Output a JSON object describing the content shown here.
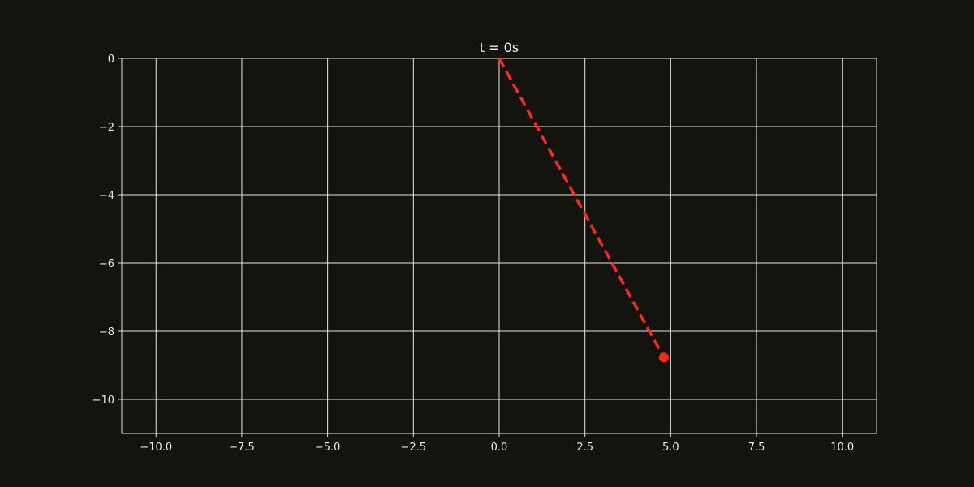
{
  "chart_data": {
    "type": "line",
    "title": "t = 0s",
    "xlabel": "",
    "ylabel": "",
    "xlim": [
      -11,
      11
    ],
    "ylim": [
      -11,
      0
    ],
    "x_ticks": [
      -10.0,
      -7.5,
      -5.0,
      -2.5,
      0.0,
      2.5,
      5.0,
      7.5,
      10.0
    ],
    "x_tick_labels": [
      "−10.0",
      "−7.5",
      "−5.0",
      "−2.5",
      "0.0",
      "2.5",
      "5.0",
      "7.5",
      "10.0"
    ],
    "y_ticks": [
      0,
      -2,
      -4,
      -6,
      -8,
      -10
    ],
    "y_tick_labels": [
      "0",
      "−2",
      "−4",
      "−6",
      "−8",
      "−10"
    ],
    "grid": true,
    "series": [
      {
        "x": [
          0.0,
          4.8
        ],
        "y": [
          0.0,
          -8.77
        ],
        "style": "dashed",
        "color": "#ff2a12",
        "marker_at_end": true
      }
    ],
    "colors": {
      "background": "#13130f",
      "grid": "#e6e6e6",
      "text": "#ececec",
      "series": "#ff2a12"
    }
  }
}
